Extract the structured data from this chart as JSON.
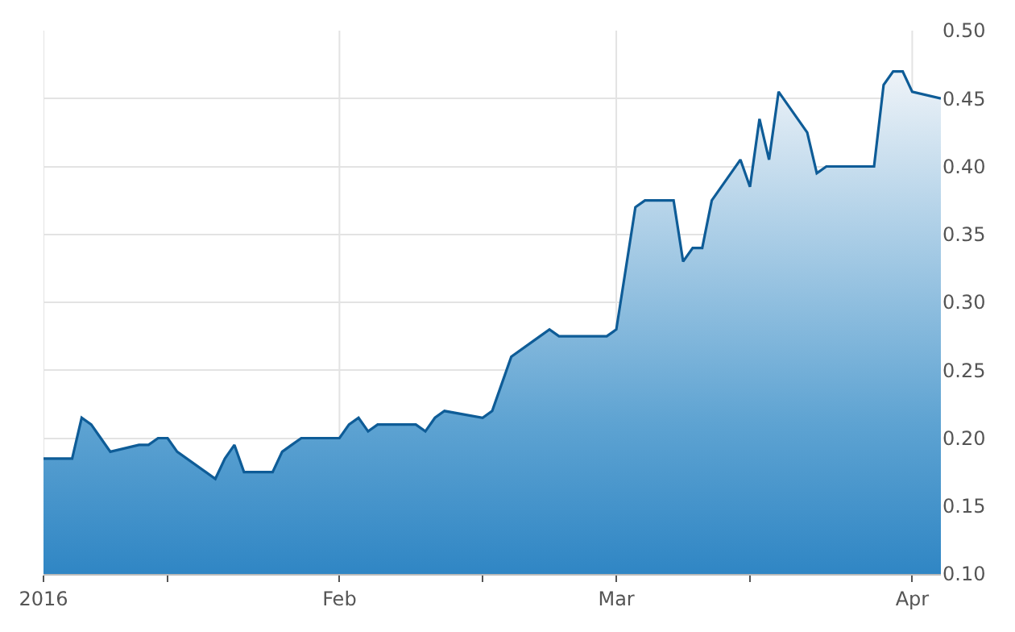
{
  "chart_data": {
    "type": "area",
    "x": [
      "2016-01-01",
      "2016-01-04",
      "2016-01-05",
      "2016-01-06",
      "2016-01-07",
      "2016-01-08",
      "2016-01-11",
      "2016-01-12",
      "2016-01-13",
      "2016-01-14",
      "2016-01-15",
      "2016-01-19",
      "2016-01-20",
      "2016-01-21",
      "2016-01-22",
      "2016-01-25",
      "2016-01-26",
      "2016-01-27",
      "2016-01-28",
      "2016-01-29",
      "2016-02-01",
      "2016-02-02",
      "2016-02-03",
      "2016-02-04",
      "2016-02-05",
      "2016-02-08",
      "2016-02-09",
      "2016-02-10",
      "2016-02-11",
      "2016-02-12",
      "2016-02-16",
      "2016-02-17",
      "2016-02-18",
      "2016-02-19",
      "2016-02-22",
      "2016-02-23",
      "2016-02-24",
      "2016-02-25",
      "2016-02-26",
      "2016-02-29",
      "2016-03-01",
      "2016-03-02",
      "2016-03-03",
      "2016-03-04",
      "2016-03-07",
      "2016-03-08",
      "2016-03-09",
      "2016-03-10",
      "2016-03-11",
      "2016-03-14",
      "2016-03-15",
      "2016-03-16",
      "2016-03-17",
      "2016-03-18",
      "2016-03-21",
      "2016-03-22",
      "2016-03-23",
      "2016-03-24",
      "2016-03-28",
      "2016-03-29",
      "2016-03-30",
      "2016-03-31",
      "2016-04-01",
      "2016-04-04"
    ],
    "series": [
      {
        "color": "#0e5c97",
        "values": [
          0.185,
          0.185,
          0.215,
          0.21,
          0.2,
          0.19,
          0.195,
          0.195,
          0.2,
          0.2,
          0.19,
          0.17,
          0.185,
          0.195,
          0.175,
          0.175,
          0.19,
          0.195,
          0.2,
          0.2,
          0.2,
          0.21,
          0.215,
          0.205,
          0.21,
          0.21,
          0.21,
          0.205,
          0.215,
          0.22,
          0.215,
          0.22,
          0.24,
          0.26,
          0.275,
          0.28,
          0.275,
          0.275,
          0.275,
          0.275,
          0.28,
          0.325,
          0.37,
          0.375,
          0.375,
          0.33,
          0.34,
          0.34,
          0.375,
          0.405,
          0.385,
          0.435,
          0.405,
          0.455,
          0.425,
          0.395,
          0.4,
          0.4,
          0.4,
          0.46,
          0.47,
          0.47,
          0.455,
          0.45
        ]
      }
    ],
    "xlim": [
      "2016-01-01",
      "2016-04-04"
    ],
    "xticks": [
      {
        "value": "2016-01-01",
        "label": "2016"
      },
      {
        "value": "2016-01-14",
        "label": null
      },
      {
        "value": "2016-02-01",
        "label": "Feb"
      },
      {
        "value": "2016-02-16",
        "label": null
      },
      {
        "value": "2016-03-01",
        "label": "Mar"
      },
      {
        "value": "2016-03-15",
        "label": null
      },
      {
        "value": "2016-04-01",
        "label": "Apr"
      }
    ],
    "ylim": [
      0.1,
      0.5
    ],
    "yticks": [
      {
        "value": 0.1,
        "label": "0.10"
      },
      {
        "value": 0.15,
        "label": "0.15"
      },
      {
        "value": 0.2,
        "label": "0.20"
      },
      {
        "value": 0.25,
        "label": "0.25"
      },
      {
        "value": 0.3,
        "label": "0.30"
      },
      {
        "value": 0.35,
        "label": "0.35"
      },
      {
        "value": 0.4,
        "label": "0.40"
      },
      {
        "value": 0.45,
        "label": "0.45"
      },
      {
        "value": 0.5,
        "label": "0.50"
      }
    ],
    "grid": true,
    "marker": "none",
    "line_style": "solid",
    "legend": false
  }
}
